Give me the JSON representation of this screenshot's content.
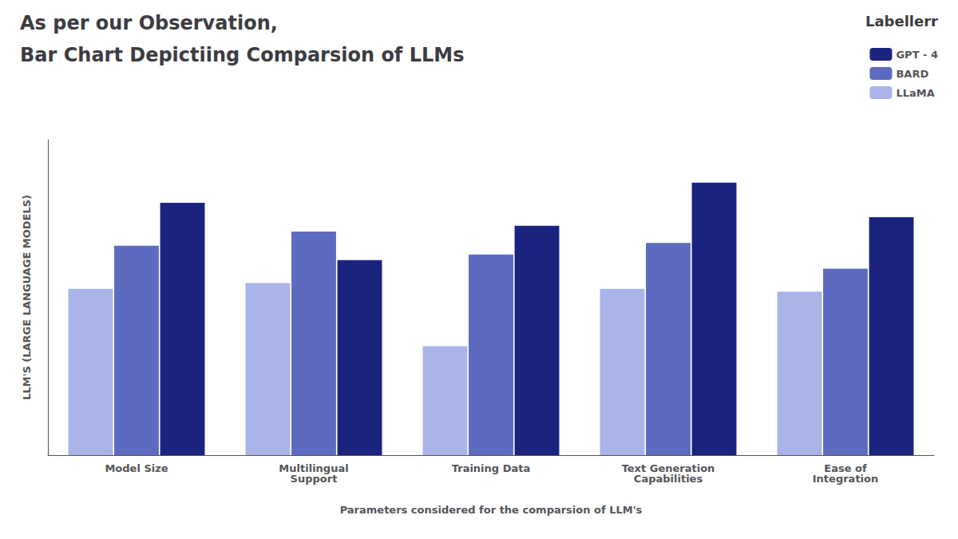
{
  "chart_data": {
    "type": "bar",
    "title": "As per our Observation,",
    "subtitle": "Bar Chart Depictiing Comparsion of LLMs",
    "annotations": [
      "Labellerr"
    ],
    "x_label": "Parameters considered for the comparsion of LLM's",
    "y_label": "LLM'S (LARGE LANGUAGE MODELS)",
    "categories": [
      "Model Size",
      "Multilingual\nSupport",
      "Training Data",
      "Text Generation\nCapabilities",
      "Ease of\nIntegration"
    ],
    "series": [
      {
        "name": "LLaMA",
        "color": "#aab4e8",
        "values": [
          58,
          60,
          38,
          58,
          57
        ]
      },
      {
        "name": "BARD",
        "color": "#5c6bc0",
        "values": [
          73,
          78,
          70,
          74,
          65
        ]
      },
      {
        "name": "GPT - 4",
        "color": "#1a237e",
        "values": [
          88,
          68,
          80,
          95,
          83
        ]
      }
    ],
    "ylim": [
      0,
      110
    ],
    "tick_labels": "x",
    "grid": false,
    "legend": "upper right"
  }
}
